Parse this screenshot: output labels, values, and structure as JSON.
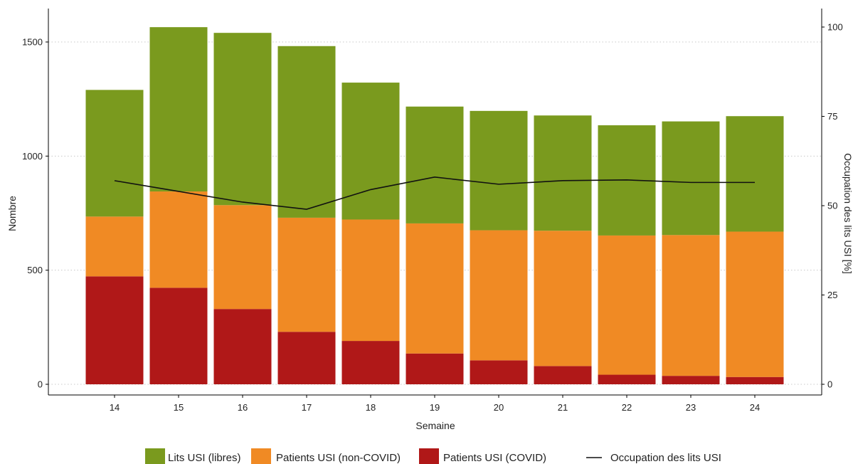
{
  "chart_data": {
    "type": "bar",
    "stacked": true,
    "title": "",
    "xlabel": "Semaine",
    "ylabel": "Nombre",
    "y2label": "Occupation des lits USI [%]",
    "categories": [
      "14",
      "15",
      "16",
      "17",
      "18",
      "19",
      "20",
      "21",
      "22",
      "23",
      "24"
    ],
    "ylim": [
      0,
      1600
    ],
    "y2lim": [
      0,
      100
    ],
    "yticks": [
      "0",
      "500",
      "1000",
      "1500"
    ],
    "y2ticks": [
      "0",
      "25",
      "50",
      "75",
      "100"
    ],
    "grid": "horizontal-dotted",
    "legend_position": "bottom",
    "series": [
      {
        "name": "Patients USI (COVID)",
        "color": "#b01818",
        "values": [
          473,
          423,
          330,
          230,
          190,
          135,
          105,
          80,
          42,
          37,
          32
        ]
      },
      {
        "name": "Patients USI (non-COVID)",
        "color": "#f08a24",
        "values": [
          262,
          422,
          455,
          500,
          532,
          570,
          570,
          593,
          610,
          617,
          637
        ]
      },
      {
        "name": "Lits USI (libres)",
        "color": "#7a9a1e",
        "values": [
          555,
          720,
          755,
          752,
          600,
          512,
          523,
          505,
          483,
          498,
          506
        ]
      }
    ],
    "line": {
      "name": "Occupation des lits USI",
      "color": "#111111",
      "axis": "right",
      "values": [
        57,
        54,
        51,
        49,
        54.5,
        58,
        56,
        57,
        57.2,
        56.5,
        56.5
      ]
    },
    "legend_order": [
      "Lits USI (libres)",
      "Patients USI (non-COVID)",
      "Patients USI (COVID)",
      "Occupation des lits USI"
    ]
  }
}
